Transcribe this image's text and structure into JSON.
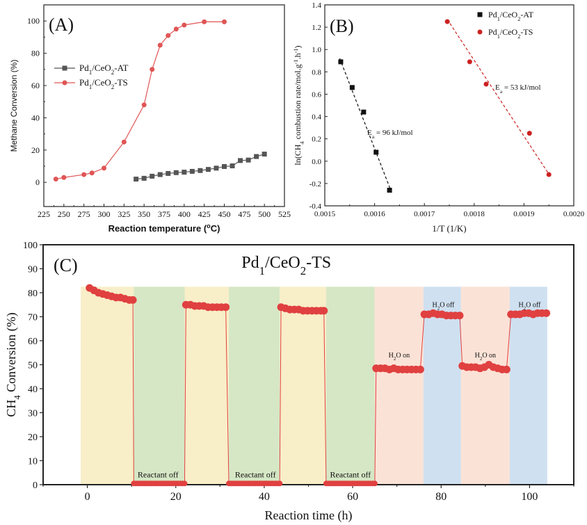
{
  "chart_data": [
    {
      "type": "line",
      "panel_label": "(A)",
      "xlabel": "Reaction temperature (°C)",
      "xlabel_parts": [
        "Reaction temperature (",
        "o",
        "C)"
      ],
      "ylabel": "Methane Conversion (%)",
      "xlim": [
        225,
        525
      ],
      "ylim": [
        -15,
        110
      ],
      "xticks": [
        "225",
        "250",
        "275",
        "300",
        "325",
        "350",
        "375",
        "400",
        "425",
        "450",
        "475",
        "500",
        "525"
      ],
      "yticks": [
        "0",
        "20",
        "40",
        "60",
        "80",
        "100"
      ],
      "legend": [
        {
          "base": "Pd",
          "sub1": "1",
          "mid": "/CeO",
          "sub2": "2",
          "suffix": "-AT"
        },
        {
          "base": "Pd",
          "sub1": "1",
          "mid": "/CeO",
          "sub2": "2",
          "suffix": "-TS"
        }
      ],
      "series": [
        {
          "name": "Pd1/CeO2-AT",
          "color": "#555555",
          "marker": "square",
          "x": [
            340,
            350,
            360,
            370,
            380,
            390,
            400,
            410,
            420,
            430,
            440,
            450,
            460,
            470,
            480,
            490,
            500
          ],
          "y": [
            2,
            2.5,
            3.8,
            4.8,
            5.5,
            6,
            6.3,
            6.8,
            7.3,
            8,
            8.8,
            9.8,
            10.2,
            13.5,
            13.8,
            16,
            17.5
          ]
        },
        {
          "name": "Pd1/CeO2-TS",
          "color": "#e05555",
          "marker": "circle",
          "x": [
            240,
            250,
            275,
            285,
            300,
            325,
            350,
            360,
            370,
            380,
            390,
            400,
            425,
            450
          ],
          "y": [
            2,
            3,
            4.8,
            5.8,
            8.8,
            25,
            48,
            70,
            85,
            91,
            95,
            97.5,
            99.5,
            99.5
          ]
        }
      ]
    },
    {
      "type": "scatter",
      "panel_label": "(B)",
      "xlabel": "1/T (1/K)",
      "ylabel": "ln(CH4 combustion rate/mol.g-1.h-1)",
      "ylabel_parts": [
        "ln(CH",
        "4",
        " combustion rate/mol.g",
        "-1",
        ".h",
        "-1",
        ")"
      ],
      "xlim": [
        0.0015,
        0.002
      ],
      "ylim": [
        -0.4,
        1.4
      ],
      "xticks": [
        "0.0015",
        "0.0016",
        "0.0017",
        "0.0018",
        "0.0019",
        "0.0020"
      ],
      "yticks": [
        "-0.4",
        "-0.2",
        "0.0",
        "0.2",
        "0.4",
        "0.6",
        "0.8",
        "1.0",
        "1.2",
        "1.4"
      ],
      "legend": [
        {
          "base": "Pd",
          "sub1": "1",
          "mid": "/CeO",
          "sub2": "2",
          "suffix": "-AT"
        },
        {
          "base": "Pd",
          "sub1": "1",
          "mid": "/CeO",
          "sub2": "2",
          "suffix": "-TS"
        }
      ],
      "annotations": [
        {
          "text": "Ea = 96 kJ/mol",
          "pre": "E",
          "sub": "a",
          "post": " = 96 kJ/mol"
        },
        {
          "text": "Ea = 53 kJ/mol",
          "pre": "E",
          "sub": "a",
          "post": " = 53 kJ/mol"
        }
      ],
      "series": [
        {
          "name": "Pd1/CeO2-AT",
          "color": "#111111",
          "marker": "square",
          "x": [
            0.001532,
            0.001555,
            0.001578,
            0.001603,
            0.00163
          ],
          "y": [
            0.89,
            0.66,
            0.44,
            0.08,
            -0.26
          ],
          "fit": {
            "x": [
              0.00153,
              0.001635
            ],
            "y": [
              0.92,
              -0.29
            ]
          }
        },
        {
          "name": "Pd1/CeO2-TS",
          "color": "#cc2222",
          "marker": "circle",
          "x": [
            0.001746,
            0.001791,
            0.001824,
            0.001911,
            0.00195
          ],
          "y": [
            1.25,
            0.89,
            0.69,
            0.25,
            -0.12
          ],
          "fit": {
            "x": [
              0.001746,
              0.001952
            ],
            "y": [
              1.27,
              -0.13
            ]
          }
        }
      ]
    },
    {
      "type": "line",
      "panel_label": "(C)",
      "title_parts": [
        "Pd",
        "1",
        "/CeO",
        "2",
        "-TS"
      ],
      "title": "Pd1/CeO2-TS",
      "xlabel": "Reaction time (h)",
      "ylabel": "CH4 Conversion (%)",
      "ylabel_parts": [
        "CH",
        "4",
        " Conversion (%)"
      ],
      "xlim": [
        -10,
        110
      ],
      "ylim": [
        0,
        100
      ],
      "xticks": [
        "0",
        "20",
        "40",
        "60",
        "80",
        "100"
      ],
      "yticks": [
        "0",
        "10",
        "20",
        "30",
        "40",
        "50",
        "60",
        "70",
        "80",
        "90",
        "100"
      ],
      "bands": [
        {
          "x0": -1.5,
          "x1": 10.5,
          "color": "#f8eec8"
        },
        {
          "x0": 10.5,
          "x1": 22,
          "color": "#d6e7c5"
        },
        {
          "x0": 22,
          "x1": 32,
          "color": "#f8eec8"
        },
        {
          "x0": 32,
          "x1": 43.5,
          "color": "#d6e7c5"
        },
        {
          "x0": 43.5,
          "x1": 54,
          "color": "#f8eec8"
        },
        {
          "x0": 54,
          "x1": 65,
          "color": "#d6e7c5"
        },
        {
          "x0": 65,
          "x1": 76,
          "color": "#fbe2d6"
        },
        {
          "x0": 76,
          "x1": 84.5,
          "color": "#cfe0f0"
        },
        {
          "x0": 84.5,
          "x1": 95.5,
          "color": "#fbe2d6"
        },
        {
          "x0": 95.5,
          "x1": 104,
          "color": "#cfe0f0"
        }
      ],
      "annotations": [
        {
          "text": "Reactant off",
          "x": 16,
          "y": 3
        },
        {
          "text": "Reactant off",
          "x": 38,
          "y": 3
        },
        {
          "text": "Reactant off",
          "x": 59.5,
          "y": 3
        },
        {
          "text": "H2O on",
          "x": 70.5,
          "y": 53
        },
        {
          "text": "H2O off",
          "x": 80.5,
          "y": 74
        },
        {
          "text": "H2O on",
          "x": 90,
          "y": 53
        },
        {
          "text": "H2O off",
          "x": 100,
          "y": 74
        }
      ],
      "series": [
        {
          "name": "Pd1/CeO2-TS",
          "color": "#e04040",
          "marker": "circle",
          "segments": [
            {
              "x": [
                0.5,
                1.5,
                2.5,
                3.5,
                4.5,
                5.5,
                6.5,
                7.5,
                8.5,
                9.5,
                10.3
              ],
              "y": [
                82,
                81,
                80,
                79.5,
                79,
                78.5,
                78,
                78,
                77.5,
                77,
                77
              ]
            },
            {
              "x": [
                10.5,
                22
              ],
              "y": [
                0.5,
                0.5
              ],
              "dense": true
            },
            {
              "x": [
                22.3,
                23.3,
                24.3,
                25.3,
                26.3,
                27.3,
                28.3,
                29.3,
                30.3,
                31.3
              ],
              "y": [
                75,
                75,
                74.5,
                74.5,
                74.5,
                74,
                74,
                74,
                74,
                74
              ]
            },
            {
              "x": [
                32,
                43.5
              ],
              "y": [
                0.5,
                0.5
              ],
              "dense": true
            },
            {
              "x": [
                43.8,
                44.8,
                45.8,
                46.8,
                47.8,
                48.8,
                49.8,
                50.8,
                51.8,
                52.8,
                53.5
              ],
              "y": [
                74,
                73.5,
                73,
                73,
                73,
                72.5,
                72.5,
                72.5,
                72.5,
                72.5,
                72.5
              ]
            },
            {
              "x": [
                54,
                65
              ],
              "y": [
                0.5,
                0.5
              ],
              "dense": true
            },
            {
              "x": [
                65.3,
                66.3,
                67.3,
                68.3,
                69.3,
                70.3,
                71.3,
                72.3,
                73.3,
                74.3,
                75.3
              ],
              "y": [
                48.5,
                48.5,
                48.5,
                48,
                48.5,
                48,
                48,
                48,
                48,
                48,
                48
              ]
            },
            {
              "x": [
                76.2,
                77.2,
                78.2,
                79.2,
                80.2,
                81.2,
                82.2,
                83.2,
                84.2
              ],
              "y": [
                71,
                71,
                71.5,
                71,
                71,
                70.5,
                70.5,
                70.5,
                70.5
              ]
            },
            {
              "x": [
                84.8,
                85.8,
                86.8,
                87.8,
                88.8,
                89.8,
                90.8,
                91.8,
                92.8,
                93.8,
                94.8
              ],
              "y": [
                49.5,
                49,
                49,
                49,
                48.5,
                49,
                50,
                49,
                48.5,
                48,
                48
              ]
            },
            {
              "x": [
                95.8,
                96.8,
                97.8,
                98.8,
                99.8,
                100.8,
                101.8,
                102.8,
                103.8
              ],
              "y": [
                71,
                71,
                71,
                71.5,
                71.5,
                71,
                71.5,
                71.5,
                71.5
              ]
            }
          ]
        }
      ]
    }
  ]
}
